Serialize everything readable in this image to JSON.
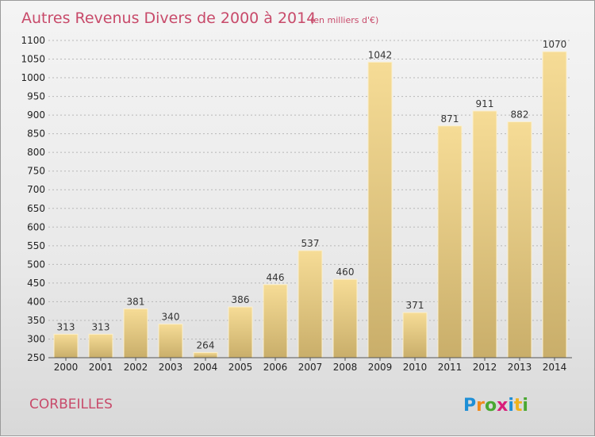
{
  "title": "Autres Revenus Divers de 2000 à 2014",
  "unit": "(en milliers d'€)",
  "commune": "CORBEILLES",
  "logo": {
    "letters": [
      "P",
      "r",
      "o",
      "x",
      "i",
      "t",
      "i"
    ],
    "colors": [
      "#1e8fd6",
      "#f08a1c",
      "#4aa832",
      "#d81e7a",
      "#1e8fd6",
      "#f0b21c",
      "#4aa832"
    ]
  },
  "colors": {
    "title": "#c84a6a",
    "bar_light": "#f6dc96",
    "bar_dark": "#c9ae6a",
    "grid": "#b7b7b7",
    "background": "#ececec"
  },
  "chart_data": {
    "type": "bar",
    "title": "Autres Revenus Divers de 2000 à 2014",
    "subtitle": "(en milliers d'€)",
    "categories": [
      "2000",
      "2001",
      "2002",
      "2003",
      "2004",
      "2005",
      "2006",
      "2007",
      "2008",
      "2009",
      "2010",
      "2011",
      "2012",
      "2013",
      "2014"
    ],
    "values": [
      313,
      313,
      381,
      340,
      264,
      386,
      446,
      537,
      460,
      1042,
      371,
      871,
      911,
      882,
      1070
    ],
    "ylim": [
      250,
      1100
    ],
    "yticks": [
      250,
      300,
      350,
      400,
      450,
      500,
      550,
      600,
      650,
      700,
      750,
      800,
      850,
      900,
      950,
      1000,
      1050,
      1100
    ],
    "grid": "horizontal dashed",
    "xlabel": "",
    "ylabel": ""
  }
}
